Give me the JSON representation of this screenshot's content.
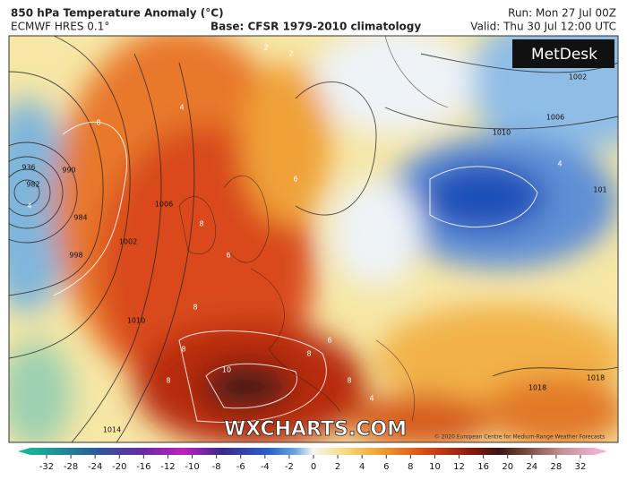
{
  "header": {
    "title": "850 hPa Temperature Anomaly (°C)",
    "model": "ECMWF HRES 0.1°",
    "base": "Base: CFSR 1979-2010 climatology",
    "run": "Run: Mon 27 Jul 00Z",
    "valid": "Valid: Thu 30 Jul 12:00 UTC"
  },
  "logo": "MetDesk",
  "watermark": "WXCHARTS.COM",
  "copyright": "© 2020 European Centre for Medium-Range Weather Forecasts",
  "colorbar": {
    "ticks": [
      -32,
      -28,
      -24,
      -20,
      -16,
      -12,
      -10,
      -8,
      -6,
      -4,
      -2,
      0,
      2,
      4,
      6,
      8,
      10,
      12,
      16,
      20,
      24,
      28,
      32
    ]
  },
  "isobar_labels": [
    "936",
    "982",
    "990",
    "984",
    "998",
    "1002",
    "1006",
    "1010",
    "1014",
    "1002",
    "1006",
    "1010",
    "1018",
    "1018",
    "101"
  ],
  "anomaly_labels": [
    "8",
    "4",
    "8",
    "6",
    "8",
    "8",
    "8",
    "10",
    "8",
    "8",
    "6",
    "4",
    "4",
    "2",
    "2",
    "4",
    "6"
  ]
}
